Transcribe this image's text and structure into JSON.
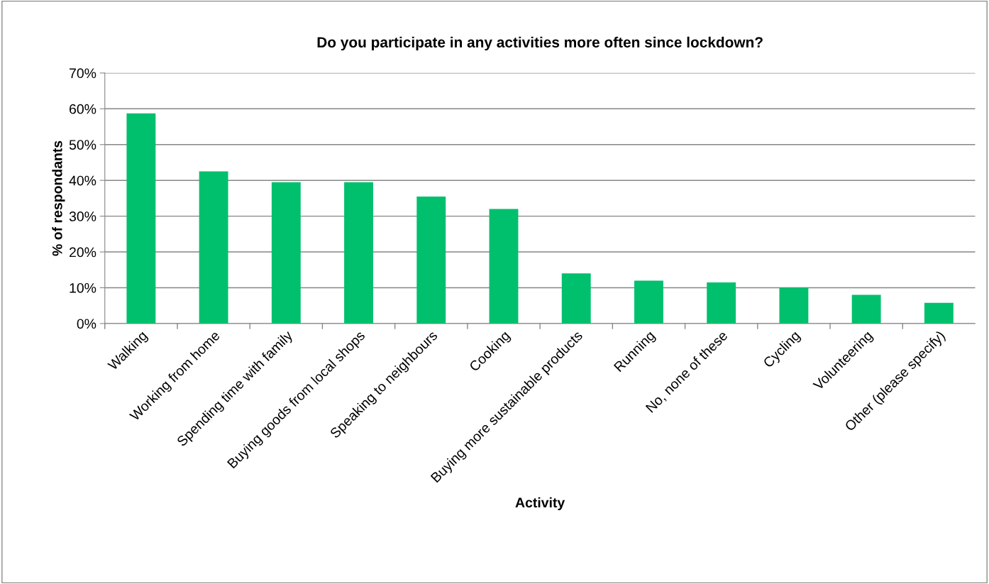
{
  "chart_data": {
    "type": "bar",
    "title": "Do you participate in any activities more often since lockdown?",
    "xlabel": "Activity",
    "ylabel": "% of respondants",
    "categories": [
      "Walking",
      "Working from home",
      "Spending time with family",
      "Buying goods from local shops",
      "Speaking to neighbours",
      "Cooking",
      "Buying more sustainable products",
      "Running",
      "No, none of these",
      "Cycling",
      "Volunteering",
      "Other (please specify)"
    ],
    "values": [
      58.7,
      42.5,
      39.5,
      39.5,
      35.5,
      32,
      14,
      12,
      11.5,
      10,
      8,
      5.8
    ],
    "color": "#00c06e",
    "ylim": [
      0,
      70
    ],
    "yticks": [
      {
        "value": 0,
        "label": "0%"
      },
      {
        "value": 10,
        "label": "10%"
      },
      {
        "value": 20,
        "label": "20%"
      },
      {
        "value": 30,
        "label": "30%"
      },
      {
        "value": 40,
        "label": "40%"
      },
      {
        "value": 50,
        "label": "50%"
      },
      {
        "value": 60,
        "label": "60%"
      },
      {
        "value": 70,
        "label": "70%"
      }
    ],
    "grid": "y",
    "legend": false
  }
}
